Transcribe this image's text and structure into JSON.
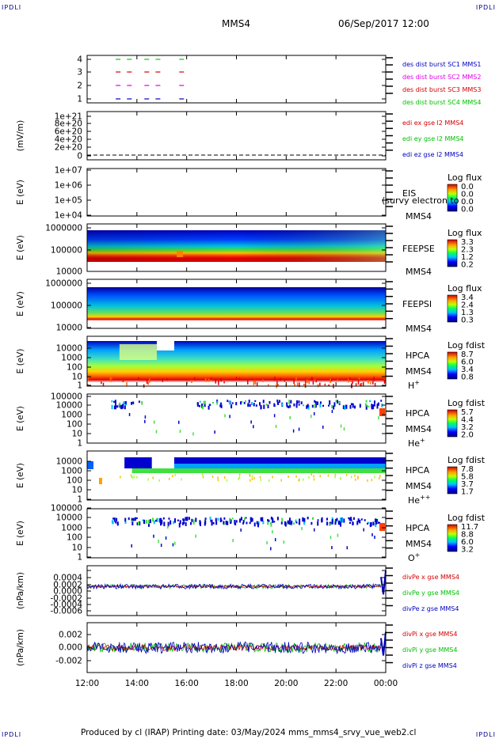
{
  "corner_tl": "IPDLI",
  "corner_tr": "IPDLI",
  "corner_bl": "IPDLI",
  "corner_br": "IPDLI",
  "header": {
    "mission": "MMS4",
    "datetime": "06/Sep/2017 12:00"
  },
  "footer": "Produced by cl (IRAP)   Printing date: 03/May/2024   mms_mms4_srvy_vue_web2.cl",
  "colors": {
    "red": "#d40000",
    "green": "#00c000",
    "magenta": "#e000e0",
    "blue": "#0000c0",
    "lime": "#00d000"
  },
  "chart_data": [
    {
      "type": "scatter",
      "name": "burst-intervals",
      "yticks": [
        "1",
        "2",
        "3",
        "4"
      ],
      "ylim": [
        0.5,
        4.5
      ],
      "legend": [
        {
          "text": "des dist burst SC1 MMS1",
          "color": "#0000c0"
        },
        {
          "text": "des dist burst SC2 MMS2",
          "color": "#e000e0"
        },
        {
          "text": "des dist burst SC3 MMS3",
          "color": "#d40000"
        },
        {
          "text": "des dist burst SC4 MMS4",
          "color": "#00c000"
        }
      ],
      "series": [
        {
          "sc": 1,
          "start_hours": [
            13.15,
            13.6,
            14.3,
            14.75,
            15.7
          ]
        },
        {
          "sc": 2,
          "start_hours": [
            13.15,
            13.6,
            14.3,
            14.75,
            15.7
          ]
        },
        {
          "sc": 3,
          "start_hours": [
            13.15,
            13.6,
            14.3,
            14.75,
            15.7
          ]
        },
        {
          "sc": 4,
          "start_hours": [
            13.15,
            13.6,
            14.3,
            14.75,
            15.7
          ]
        }
      ]
    },
    {
      "type": "line",
      "name": "edi-field",
      "ylabel": "(mV/m)",
      "yticks": [
        "0",
        "2e+20",
        "4e+20",
        "6e+20",
        "8e+20",
        "1e+21"
      ],
      "legend": [
        {
          "text": "edi ex gse l2 MMS4",
          "color": "#d40000"
        },
        {
          "text": "edi ey gse l2 MMS4",
          "color": "#00c000"
        },
        {
          "text": "edi ez gse l2 MMS4",
          "color": "#0000c0"
        }
      ]
    },
    {
      "type": "heatmap",
      "name": "eis",
      "ylabel": "E (eV)",
      "yticks": [
        "1e+04",
        "1e+05",
        "1e+06",
        "1e+07"
      ],
      "label": "EIS",
      "sublabel": "MMS4",
      "overlay": "(survy electron to",
      "cb_title": "Log flux",
      "cb_ticks": [
        "0.0",
        "0.0",
        "0.0",
        "0.0"
      ]
    },
    {
      "type": "heatmap",
      "name": "feepse",
      "ylabel": "E (eV)",
      "yticks": [
        "10000",
        "100000",
        "1000000"
      ],
      "label": "FEEPSE",
      "sublabel": "MMS4",
      "cb_title": "Log flux",
      "cb_ticks": [
        "3.3",
        "2.3",
        "1.2",
        "0.2"
      ]
    },
    {
      "type": "heatmap",
      "name": "feepsi",
      "ylabel": "E (eV)",
      "yticks": [
        "10000",
        "100000",
        "1000000"
      ],
      "label": "FEEPSI",
      "sublabel": "MMS4",
      "cb_title": "Log flux",
      "cb_ticks": [
        "3.4",
        "2.4",
        "1.3",
        "0.3"
      ]
    },
    {
      "type": "heatmap",
      "name": "hpca-h",
      "ylabel": "E (eV)",
      "yticks": [
        "1",
        "10",
        "100",
        "1000",
        "10000"
      ],
      "label": "HPCA",
      "sublabel": "MMS4",
      "species": "H",
      "charge": "+",
      "cb_title": "Log fdist",
      "cb_ticks": [
        "8.7",
        "6.0",
        "3.4",
        "0.8"
      ]
    },
    {
      "type": "heatmap",
      "name": "hpca-he",
      "ylabel": "E (eV)",
      "yticks": [
        "1",
        "10",
        "100",
        "1000",
        "10000",
        "100000"
      ],
      "label": "HPCA",
      "sublabel": "MMS4",
      "species": "He",
      "charge": "+",
      "cb_title": "Log fdist",
      "cb_ticks": [
        "5.7",
        "4.4",
        "3.2",
        "2.0"
      ]
    },
    {
      "type": "heatmap",
      "name": "hpca-hepp",
      "ylabel": "E (eV)",
      "yticks": [
        "1",
        "10",
        "100",
        "1000",
        "10000"
      ],
      "label": "HPCA",
      "sublabel": "MMS4",
      "species": "He",
      "charge": "++",
      "cb_title": "Log fdist",
      "cb_ticks": [
        "7.8",
        "5.8",
        "3.7",
        "1.7"
      ]
    },
    {
      "type": "heatmap",
      "name": "hpca-o",
      "ylabel": "E (eV)",
      "yticks": [
        "1",
        "10",
        "100",
        "1000",
        "10000",
        "100000"
      ],
      "label": "HPCA",
      "sublabel": "MMS4",
      "species": "O",
      "charge": "+",
      "cb_title": "Log fdist",
      "cb_ticks": [
        "11.7",
        "8.8",
        "6.0",
        "3.2"
      ]
    },
    {
      "type": "line",
      "name": "divpe",
      "ylabel": "(nPa/km)",
      "yticks": [
        "-0.0006",
        "-0.0004",
        "-0.0002",
        "0.0000",
        "0.0002",
        "0.0004"
      ],
      "ylim": [
        -0.0007,
        0.0005
      ],
      "legend": [
        {
          "text": "divPe x gse MMS4",
          "color": "#d40000"
        },
        {
          "text": "divPe y gse MMS4",
          "color": "#00c000"
        },
        {
          "text": "divPe z gse MMS4",
          "color": "#0000c0"
        }
      ]
    },
    {
      "type": "line",
      "name": "divpi",
      "ylabel": "(nPa/km)",
      "yticks": [
        "-0.002",
        "0.000",
        "0.002"
      ],
      "ylim": [
        -0.0032,
        0.0032
      ],
      "legend": [
        {
          "text": "divPi x gse MMS4",
          "color": "#d40000"
        },
        {
          "text": "divPi y gse MMS4",
          "color": "#00c000"
        },
        {
          "text": "divPi z gse MMS4",
          "color": "#0000c0"
        }
      ]
    }
  ],
  "time_axis": {
    "ticks": [
      "12:00",
      "14:00",
      "16:00",
      "18:00",
      "20:00",
      "22:00",
      "00:00"
    ],
    "start_hour": 12,
    "end_hour": 24
  }
}
